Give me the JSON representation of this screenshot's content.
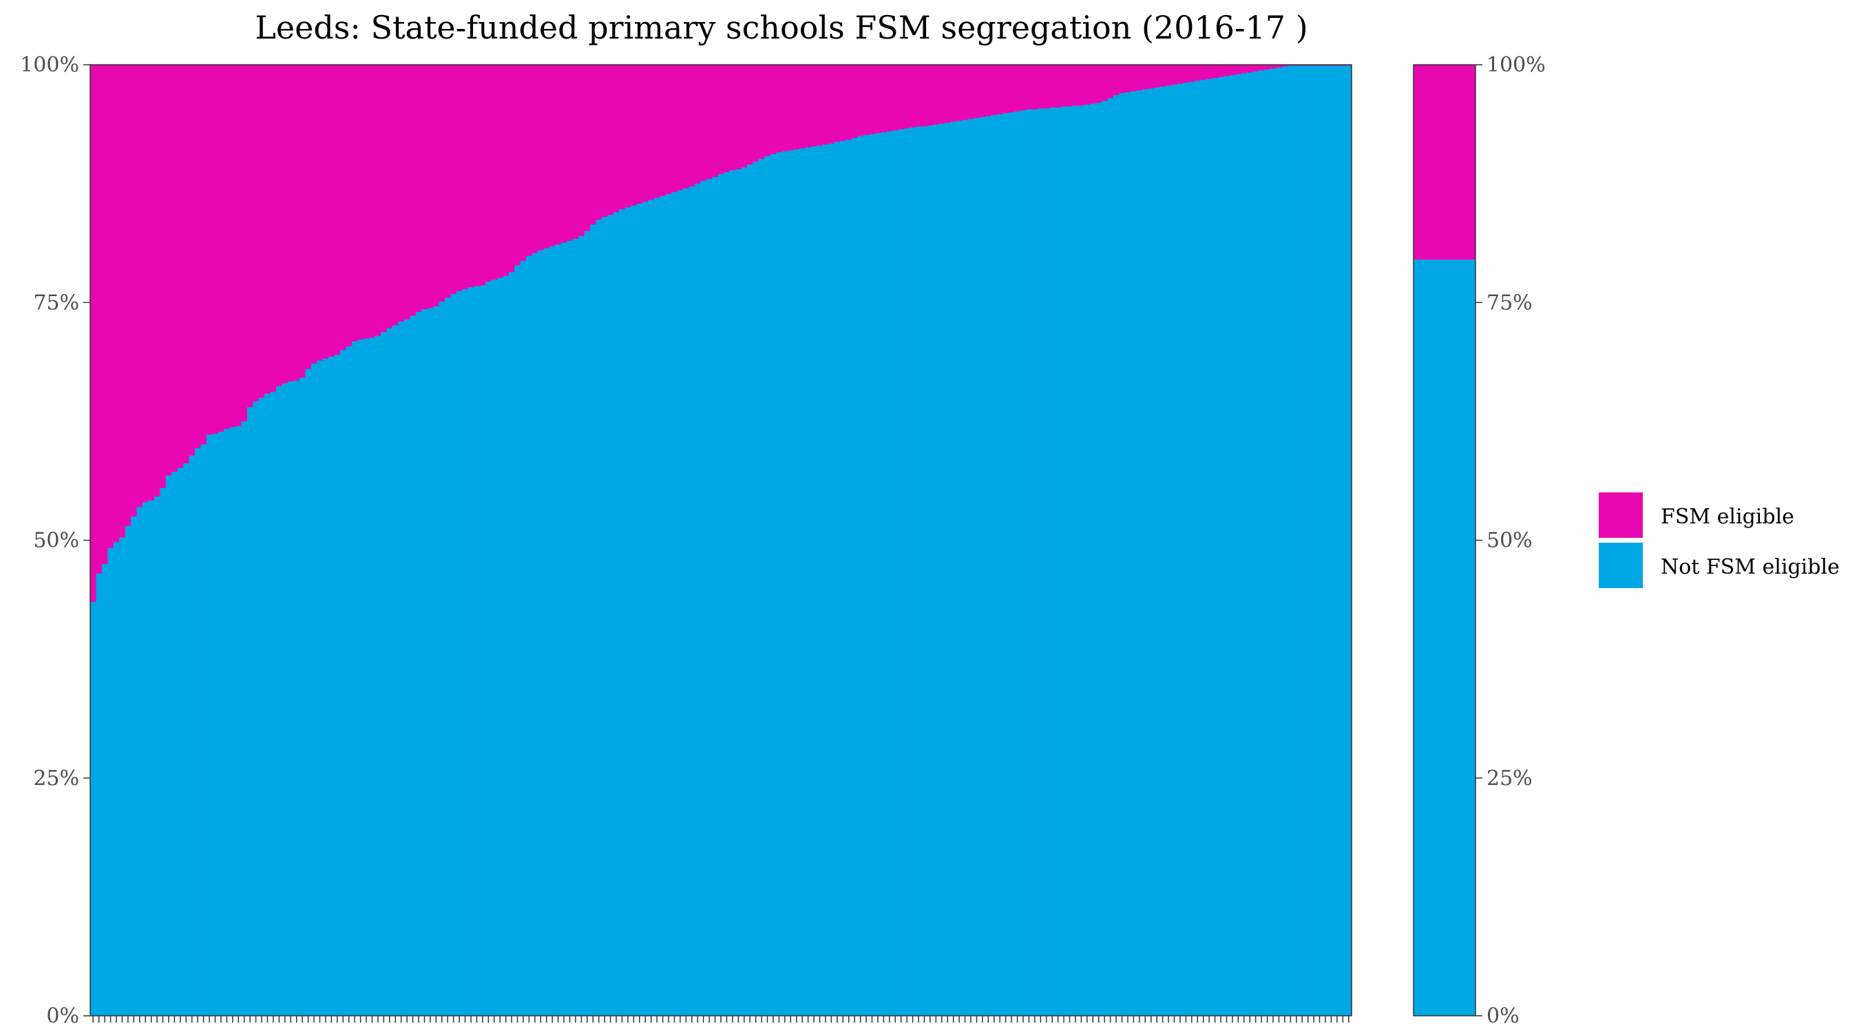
{
  "chart_data": {
    "type": "bar",
    "stacked": true,
    "title": "Leeds: State-funded primary schools FSM segregation (2016-17 )",
    "xlabel": "",
    "ylabel": "",
    "ylim": [
      0,
      100
    ],
    "y_ticks": [
      "0%",
      "25%",
      "50%",
      "75%",
      "100%"
    ],
    "y_tick_values": [
      0,
      25,
      50,
      75,
      100
    ],
    "school_count": 217,
    "not_fsm_percent_sorted": [
      43.5,
      46.5,
      47.5,
      49.2,
      49.8,
      50.3,
      51.5,
      52.5,
      53.5,
      54.0,
      54.2,
      54.6,
      55.5,
      56.8,
      57.2,
      57.6,
      58.1,
      58.9,
      59.7,
      60.1,
      61.1,
      61.2,
      61.4,
      61.7,
      61.9,
      62.0,
      62.5,
      64.0,
      64.6,
      65.0,
      65.4,
      65.6,
      66.2,
      66.5,
      66.7,
      66.8,
      67.1,
      68.0,
      68.6,
      68.9,
      69.1,
      69.3,
      69.5,
      70.0,
      70.4,
      70.9,
      71.1,
      71.2,
      71.3,
      71.5,
      71.9,
      72.3,
      72.6,
      73.0,
      73.2,
      73.6,
      74.0,
      74.3,
      74.4,
      74.6,
      75.1,
      75.5,
      75.9,
      76.2,
      76.4,
      76.6,
      76.7,
      76.8,
      77.2,
      77.4,
      77.6,
      77.8,
      78.2,
      78.9,
      79.4,
      79.9,
      80.2,
      80.5,
      80.7,
      80.9,
      81.1,
      81.3,
      81.5,
      81.7,
      82.0,
      82.5,
      83.2,
      83.7,
      84.0,
      84.2,
      84.5,
      84.8,
      85.0,
      85.2,
      85.4,
      85.6,
      85.8,
      86.0,
      86.2,
      86.4,
      86.6,
      86.8,
      87.0,
      87.2,
      87.5,
      87.8,
      88.0,
      88.2,
      88.5,
      88.7,
      88.9,
      89.0,
      89.2,
      89.5,
      89.8,
      90.1,
      90.4,
      90.6,
      90.8,
      90.9,
      91.0,
      91.1,
      91.2,
      91.3,
      91.4,
      91.5,
      91.6,
      91.7,
      91.9,
      92.0,
      92.1,
      92.3,
      92.5,
      92.6,
      92.7,
      92.8,
      92.9,
      93.0,
      93.1,
      93.2,
      93.3,
      93.4,
      93.5,
      93.5,
      93.6,
      93.7,
      93.8,
      93.9,
      94.0,
      94.1,
      94.2,
      94.3,
      94.4,
      94.5,
      94.6,
      94.7,
      94.8,
      94.9,
      95.0,
      95.1,
      95.2,
      95.3,
      95.3,
      95.4,
      95.4,
      95.5,
      95.5,
      95.6,
      95.6,
      95.7,
      95.7,
      95.8,
      95.9,
      96.0,
      96.2,
      96.5,
      96.8,
      97.0,
      97.1,
      97.2,
      97.3,
      97.4,
      97.5,
      97.6,
      97.7,
      97.8,
      97.9,
      98.0,
      98.1,
      98.2,
      98.3,
      98.4,
      98.5,
      98.6,
      98.7,
      98.8,
      98.9,
      99.0,
      99.1,
      99.2,
      99.3,
      99.4,
      99.5,
      99.6,
      99.7,
      99.8,
      99.9,
      99.9,
      99.9,
      99.9,
      99.9,
      99.9,
      99.9,
      99.9,
      99.9,
      99.9,
      99.9
    ],
    "overall_not_fsm_percent": 79.5,
    "overall_fsm_percent": 20.5,
    "series": [
      {
        "name": "FSM eligible",
        "color": "#E907B1"
      },
      {
        "name": "Not FSM eligible",
        "color": "#00A7E5"
      }
    ],
    "legend_position": "right"
  }
}
